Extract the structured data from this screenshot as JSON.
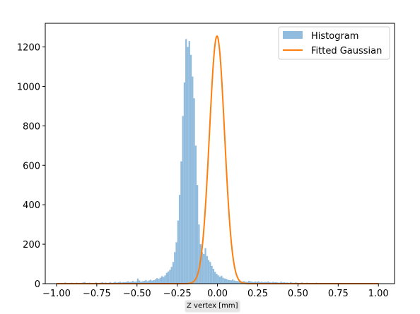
{
  "chart_data": {
    "type": "bar",
    "xlabel": "Z vertex [mm]",
    "ylabel": "",
    "xlim": [
      -1.07,
      1.1
    ],
    "ylim": [
      0,
      1320
    ],
    "xticks": [
      -1.0,
      -0.75,
      -0.5,
      -0.25,
      0.0,
      0.25,
      0.5,
      0.75,
      1.0
    ],
    "xtick_labels": [
      "−1.00",
      "−0.75",
      "−0.50",
      "−0.25",
      "0.00",
      "0.25",
      "0.50",
      "0.75",
      "1.00"
    ],
    "yticks": [
      0,
      200,
      400,
      600,
      800,
      1000,
      1200
    ],
    "ytick_labels": [
      "0",
      "200",
      "400",
      "600",
      "800",
      "1000",
      "1200"
    ],
    "grid": false,
    "legend_position": "top-right",
    "legend": [
      {
        "label": "Histogram",
        "kind": "patch",
        "color": "#91bcdd"
      },
      {
        "label": "Fitted Gaussian",
        "kind": "line",
        "color": "#ff7f0e"
      }
    ],
    "series": [
      {
        "name": "Histogram",
        "kind": "histogram",
        "color": "#91bcdd",
        "bin_edges_start": -1.0,
        "bin_width": 0.01,
        "counts": [
          2,
          0,
          3,
          2,
          4,
          6,
          3,
          2,
          4,
          5,
          2,
          3,
          5,
          3,
          2,
          4,
          6,
          8,
          3,
          4,
          5,
          3,
          4,
          2,
          6,
          4,
          3,
          5,
          7,
          4,
          6,
          3,
          5,
          8,
          4,
          6,
          9,
          5,
          7,
          10,
          6,
          8,
          7,
          9,
          12,
          8,
          10,
          14,
          9,
          11,
          26,
          16,
          10,
          12,
          14,
          18,
          12,
          16,
          20,
          15,
          18,
          22,
          28,
          24,
          30,
          38,
          34,
          42,
          55,
          62,
          70,
          85,
          110,
          160,
          210,
          320,
          450,
          620,
          850,
          1020,
          1240,
          1200,
          1230,
          1160,
          1050,
          940,
          700,
          500,
          300,
          200,
          160,
          150,
          180,
          140,
          120,
          110,
          90,
          75,
          60,
          50,
          42,
          35,
          40,
          30,
          26,
          24,
          20,
          18,
          17,
          22,
          16,
          14,
          13,
          18,
          12,
          11,
          13,
          10,
          9,
          14,
          12,
          10,
          8,
          11,
          9,
          12,
          8,
          10,
          7,
          9,
          8,
          11,
          7,
          6,
          9,
          7,
          8,
          6,
          5,
          10,
          6,
          7,
          5,
          6,
          4,
          8,
          5,
          4,
          6,
          5,
          3,
          4,
          6,
          4,
          3,
          5,
          4,
          3,
          2,
          4,
          3,
          5,
          2,
          3,
          4,
          3,
          2,
          3,
          2,
          4,
          3,
          2,
          3,
          1,
          2,
          3,
          2,
          2,
          1,
          2,
          3,
          1,
          2,
          2,
          1,
          3,
          1,
          2,
          1,
          2,
          1,
          2,
          1,
          1,
          2,
          1,
          0,
          1,
          2,
          1,
          1,
          0,
          1
        ]
      },
      {
        "name": "Fitted Gaussian",
        "kind": "line",
        "color": "#ff7f0e",
        "function": "gaussian",
        "amplitude": 1255,
        "mean": -0.003,
        "sigma": 0.047,
        "x_range": [
          -1.0,
          1.0
        ]
      }
    ]
  }
}
